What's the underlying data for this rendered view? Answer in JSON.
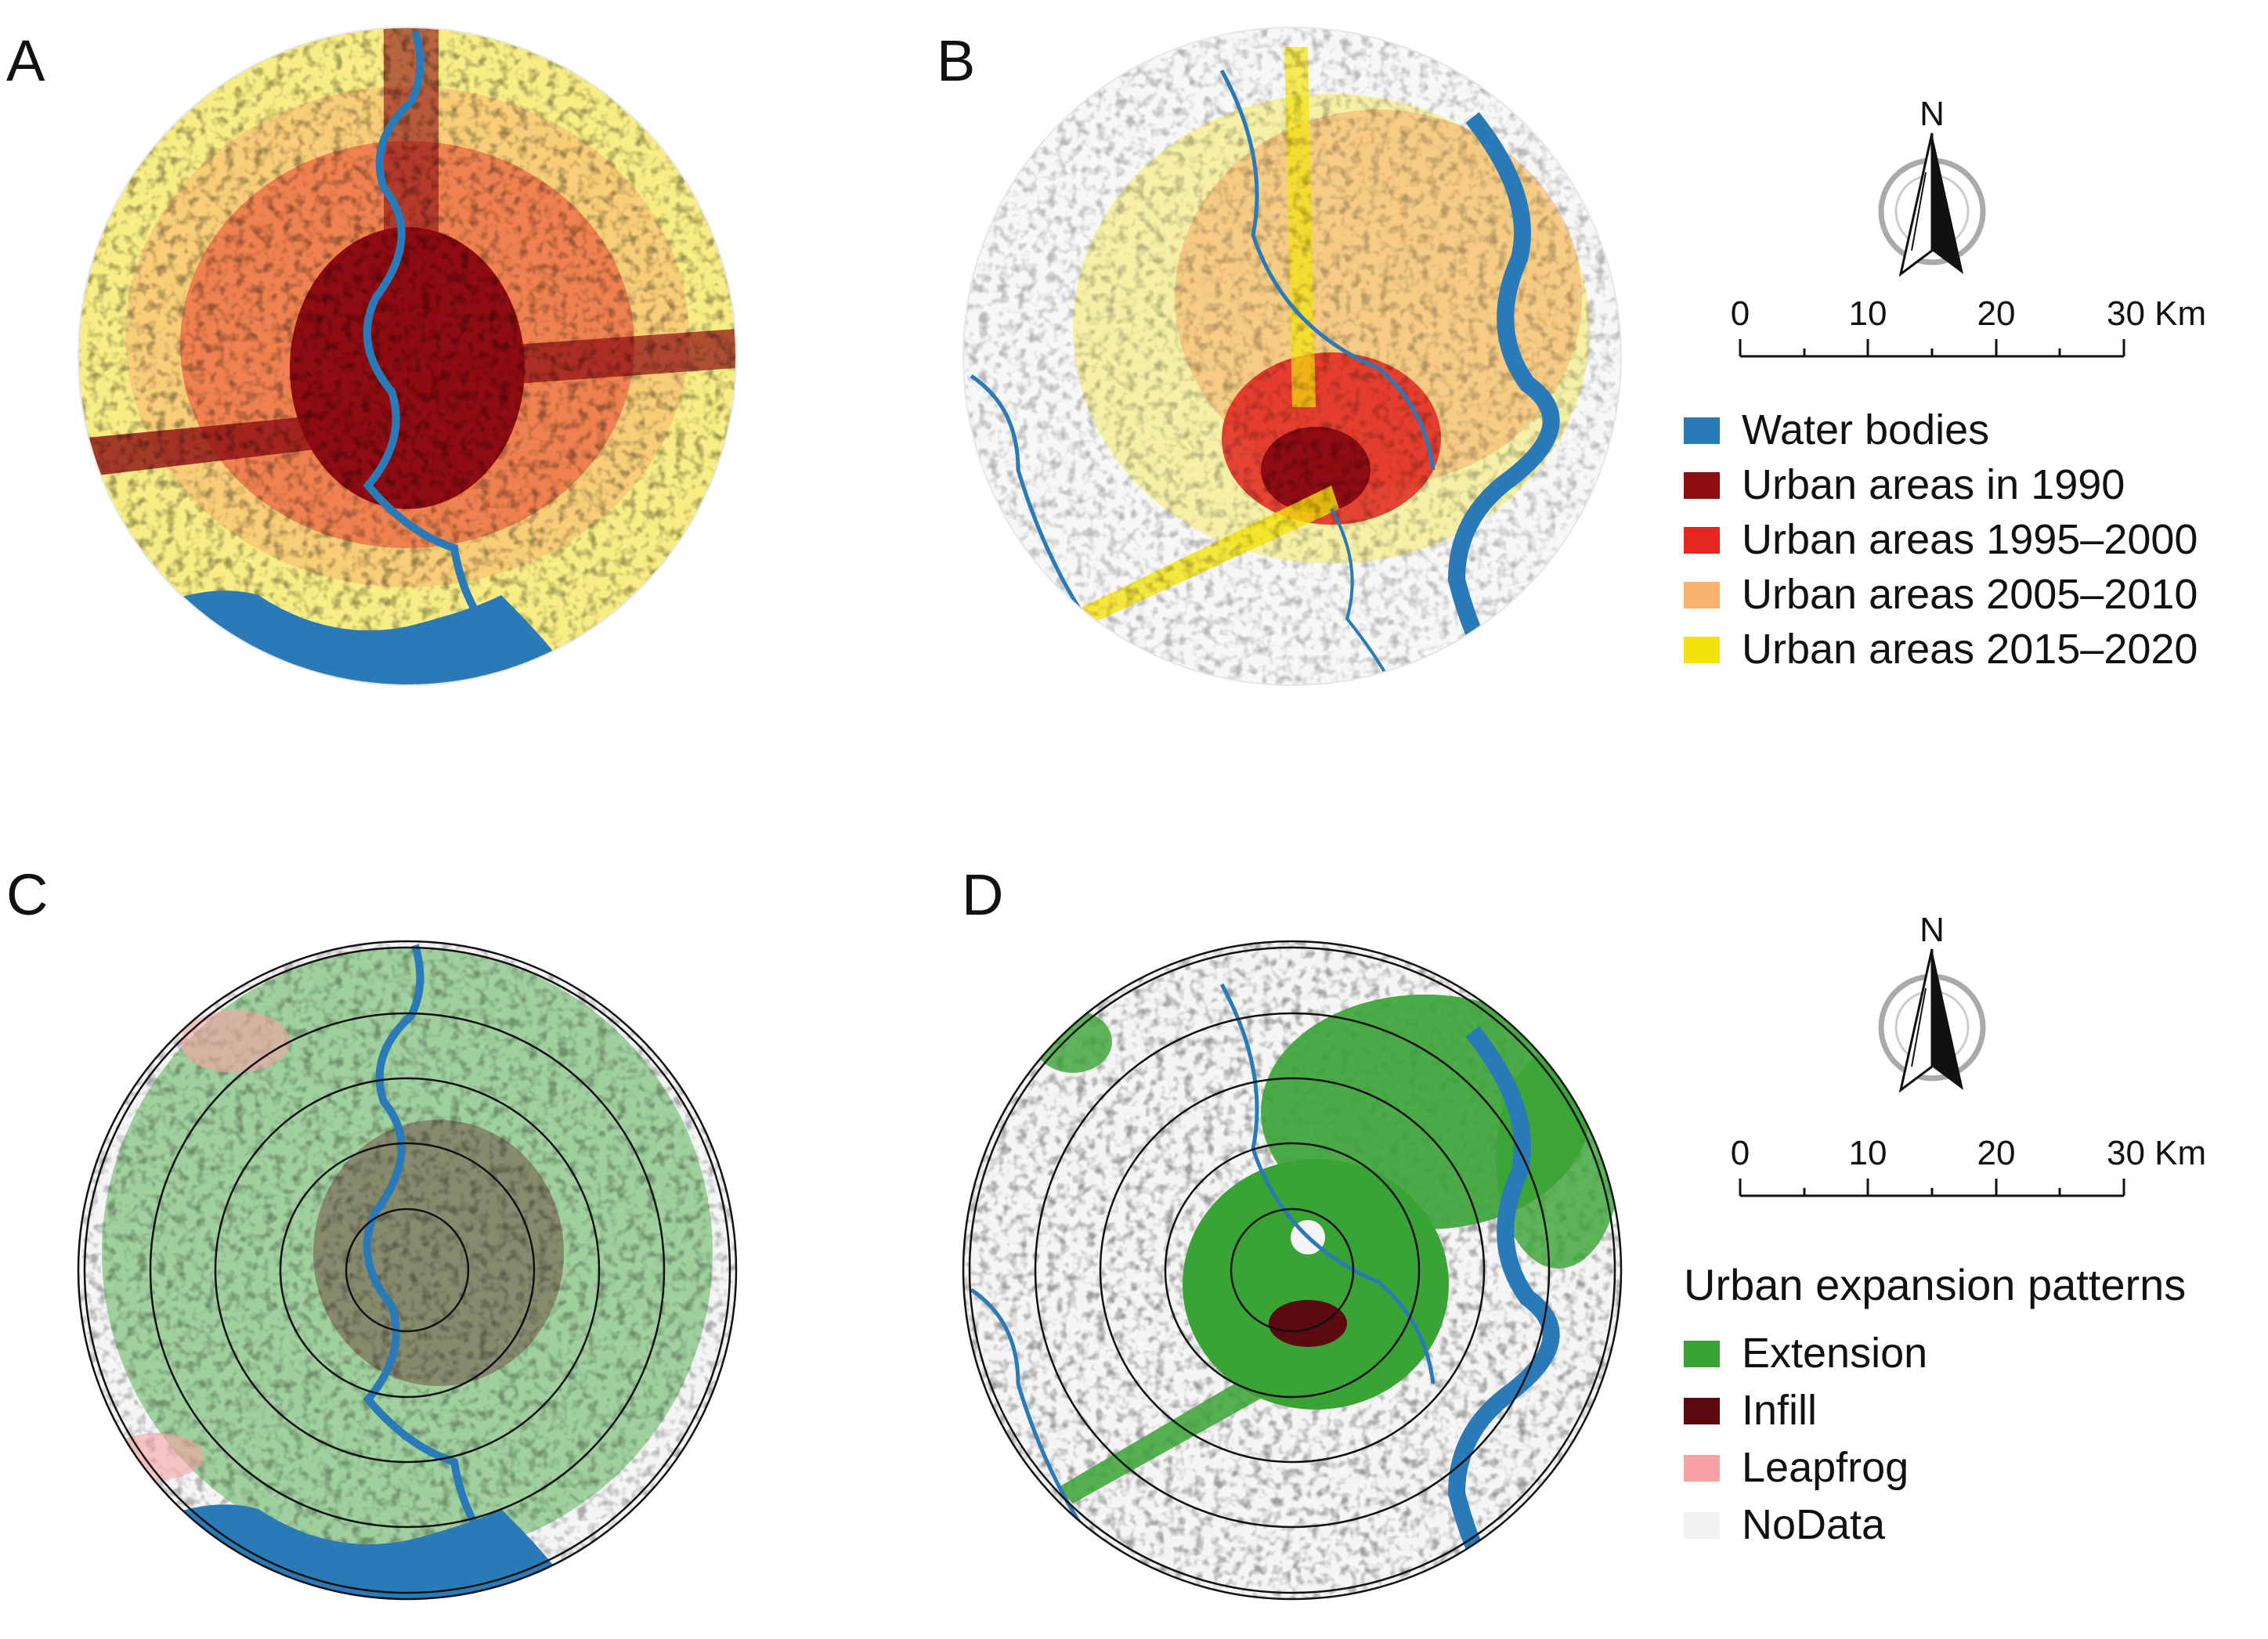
{
  "panels": {
    "a": {
      "letter": "A"
    },
    "b": {
      "letter": "B"
    },
    "c": {
      "letter": "C"
    },
    "d": {
      "letter": "D"
    }
  },
  "colors": {
    "water": "#2a7ab8",
    "urban_1990": "#8e0c12",
    "urban_1995_2000": "#e3261f",
    "urban_2005_2010": "#f7b26e",
    "urban_2015_2020": "#f4e20e",
    "extension": "#3aa335",
    "infill": "#5b0a10",
    "leapfrog": "#f7a3a5",
    "nodata": "#f2f2f2"
  },
  "legend_top": {
    "items": [
      {
        "label": "Water bodies",
        "color": "#2a7ab8"
      },
      {
        "label": "Urban areas in 1990",
        "color": "#8e0c12"
      },
      {
        "label": "Urban areas 1995–2000",
        "color": "#e3261f"
      },
      {
        "label": "Urban areas 2005–2010",
        "color": "#f7b26e"
      },
      {
        "label": "Urban areas 2015–2020",
        "color": "#f4e20e"
      }
    ]
  },
  "legend_bottom": {
    "title": "Urban expansion patterns",
    "items": [
      {
        "label": "Extension",
        "color": "#3aa335"
      },
      {
        "label": "Infill",
        "color": "#5b0a10"
      },
      {
        "label": "Leapfrog",
        "color": "#f7a3a5"
      },
      {
        "label": "NoData",
        "color": "#f2f2f2"
      }
    ]
  },
  "north_arrow": {
    "label": "N"
  },
  "scale_bar": {
    "ticks": [
      "0",
      "10",
      "20",
      "30 Km"
    ]
  }
}
